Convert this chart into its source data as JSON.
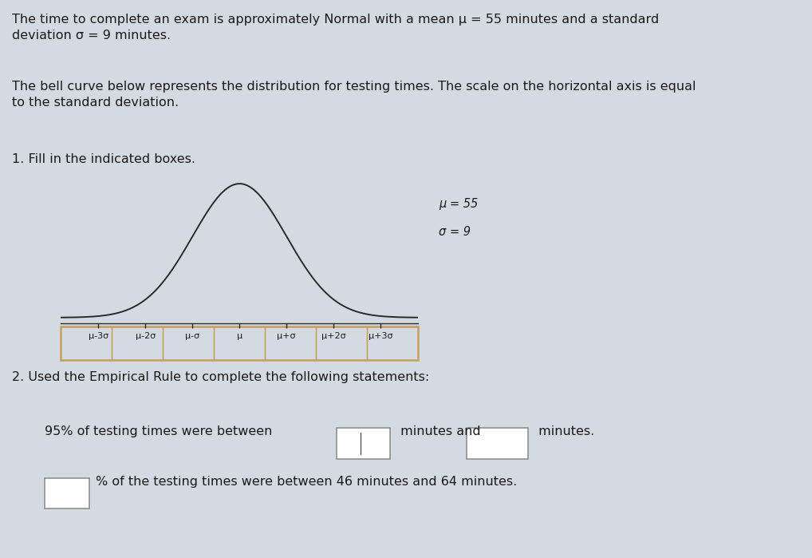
{
  "title_text": "The time to complete an exam is approximately Normal with a mean μ = 55 minutes and a standard\ndeviation σ = 9 minutes.",
  "subtitle_text": "The bell curve below represents the distribution for testing times. The scale on the horizontal axis is equal\nto the standard deviation.",
  "instruction1": "1. Fill in the indicated boxes.",
  "instruction2": "2. Used the Empirical Rule to complete the following statements:",
  "mu_label": "μ = 55",
  "sigma_label": "σ = 9",
  "axis_labels": [
    "μ-3σ",
    "μ-2σ",
    "μ-σ",
    "μ",
    "μ+σ",
    "μ+2σ",
    "μ+3σ"
  ],
  "mean": 55,
  "std": 9,
  "statement1_pre": "95% of testing times were between ",
  "statement1_mid": " minutes and ",
  "statement1_end": " minutes.",
  "statement2_end": "% of the testing times were between 46 minutes and 64 minutes.",
  "bg_color": "#d4dae2",
  "box_color": "#c8a060",
  "curve_color": "#2a2a2a",
  "text_color": "#1a1a1a",
  "answer_box_edge": "#888888",
  "font_size_main": 11.5,
  "font_size_axis": 8.0,
  "font_size_annotation": 10.5
}
